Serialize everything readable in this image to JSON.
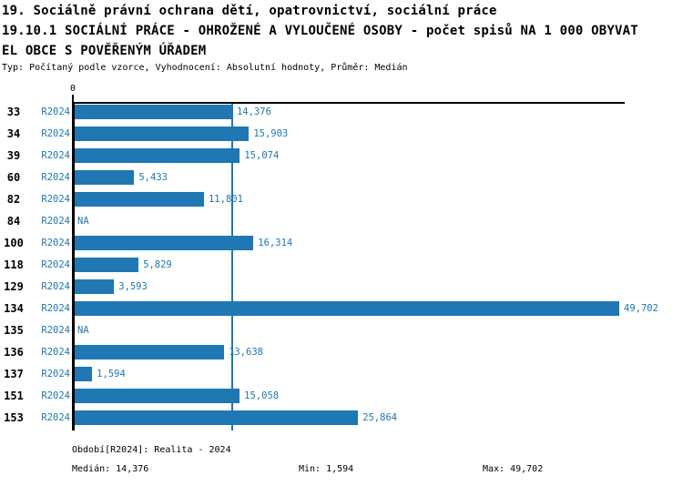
{
  "header": {
    "title_line1": "19. Sociálně právní ochrana dětí, opatrovnictví, sociální práce",
    "title_line2": "19.10.1 SOCIÁLNÍ PRÁCE - OHROŽENÉ A VYLOUČENÉ OSOBY - počet spisů NA 1 000 OBYVAT",
    "title_line3": "EL OBCE S POVĚŘENÝM ÚŘADEM",
    "meta": "Typ: Počítaný podle vzorce, Vyhodnocení: Absolutní hodnoty, Průměr: Medián"
  },
  "chart_data": {
    "type": "bar",
    "orientation": "horizontal",
    "title": "19.10.1 SOCIÁLNÍ PRÁCE - OHROŽENÉ A VYLOUČENÉ OSOBY - počet spisů NA 1 000 OBYVATEL OBCE S POVĚŘENÝM ÚŘADEM",
    "categories": [
      "33",
      "34",
      "39",
      "60",
      "82",
      "84",
      "100",
      "118",
      "129",
      "134",
      "135",
      "136",
      "137",
      "151",
      "153"
    ],
    "series_label": "R2024",
    "values": [
      14376,
      15903,
      15074,
      5433,
      11801,
      null,
      16314,
      5829,
      3593,
      49702,
      null,
      13638,
      1594,
      15058,
      25864
    ],
    "value_labels": [
      "14,376",
      "15,903",
      "15,074",
      "5,433",
      "11,801",
      "NA",
      "16,314",
      "5,829",
      "3,593",
      "49,702",
      "NA",
      "13,638",
      "1,594",
      "15,058",
      "25,864"
    ],
    "na_label": "NA",
    "zero_tick_label": "0",
    "xlim": [
      0,
      50200
    ],
    "median_value": 14376,
    "grid": false,
    "legend": "none",
    "bar_color": "#1f77b4",
    "median_line_color": "#1f77b4",
    "label_color": "#1f77b4",
    "axis_color": "#000000"
  },
  "footer": {
    "period": "Období[R2024]: Realita - 2024",
    "median": "Medián: 14,376",
    "min": "Min: 1,594",
    "max": "Max: 49,702"
  }
}
